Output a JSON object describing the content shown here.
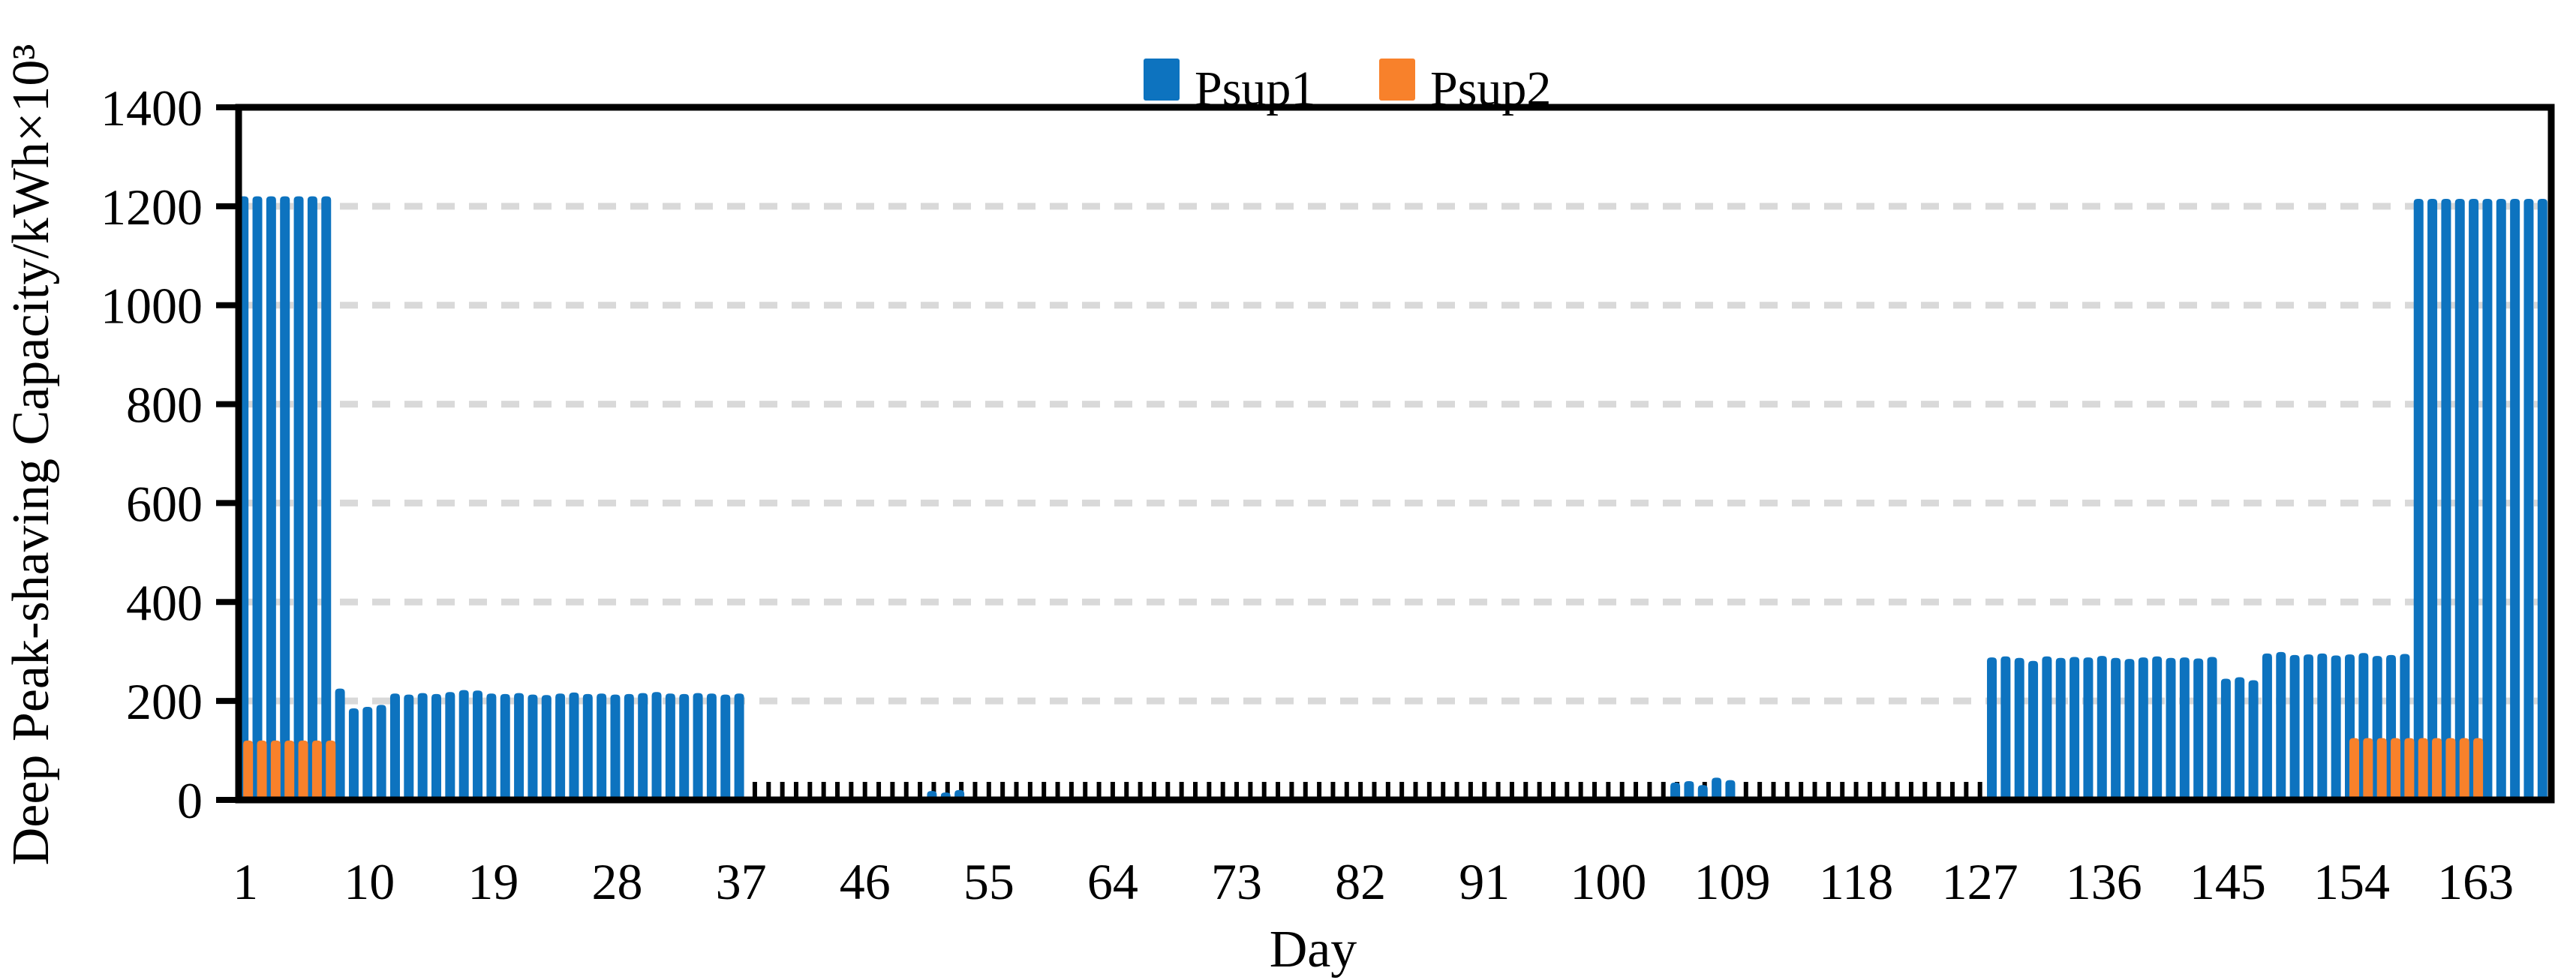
{
  "figure": {
    "background": "#ffffff",
    "frame_color": "#000000",
    "grid_color": "#d9d9d9"
  },
  "legend": {
    "items": [
      {
        "label": "Psup1",
        "color": "#0d73bf"
      },
      {
        "label": "Psup2",
        "color": "#f8812b"
      }
    ]
  },
  "chart_data": {
    "type": "bar",
    "title": "",
    "xlabel": "Day",
    "ylabel": "Deep Peak-shaving Capacity/kWh×10³",
    "x_range": [
      1,
      168
    ],
    "ylim": [
      0,
      1400
    ],
    "x_ticks": [
      1,
      10,
      19,
      28,
      37,
      46,
      55,
      64,
      73,
      82,
      91,
      100,
      109,
      118,
      127,
      136,
      145,
      154,
      163
    ],
    "y_ticks": [
      0,
      200,
      400,
      600,
      800,
      1000,
      1200,
      1400
    ],
    "grid": "horizontal dashed",
    "legend_position": "top center",
    "bar_style": "overlapped pair, Psup2 drawn in front offset right",
    "series": [
      {
        "name": "Psup1",
        "color": "#0d73bf",
        "values": [
          1220,
          1220,
          1220,
          1220,
          1220,
          1220,
          1220,
          225,
          185,
          188,
          192,
          215,
          213,
          216,
          214,
          218,
          222,
          221,
          215,
          214,
          216,
          213,
          212,
          215,
          217,
          214,
          215,
          213,
          214,
          216,
          218,
          215,
          214,
          216,
          215,
          213,
          215,
          0,
          0,
          0,
          0,
          0,
          0,
          0,
          0,
          0,
          0,
          0,
          0,
          0,
          18,
          15,
          20,
          0,
          0,
          0,
          0,
          0,
          0,
          0,
          0,
          0,
          0,
          0,
          0,
          0,
          0,
          0,
          0,
          0,
          0,
          0,
          0,
          0,
          0,
          0,
          0,
          0,
          0,
          0,
          0,
          0,
          0,
          0,
          0,
          0,
          0,
          0,
          0,
          0,
          0,
          0,
          0,
          0,
          0,
          0,
          0,
          0,
          0,
          0,
          0,
          0,
          0,
          0,
          35,
          38,
          30,
          45,
          40,
          0,
          0,
          0,
          0,
          0,
          0,
          0,
          0,
          0,
          0,
          0,
          0,
          0,
          0,
          0,
          0,
          0,
          0,
          288,
          290,
          287,
          281,
          290,
          287,
          289,
          288,
          291,
          287,
          285,
          288,
          290,
          287,
          288,
          286,
          289,
          245,
          248,
          242,
          296,
          299,
          293,
          294,
          296,
          292,
          294,
          297,
          291,
          293,
          295,
          1215,
          1215,
          1215,
          1215,
          1215,
          1215,
          1215,
          1215,
          1215,
          1215
        ]
      },
      {
        "name": "Psup2",
        "color": "#f8812b",
        "values": [
          120,
          120,
          120,
          120,
          120,
          120,
          120,
          0,
          0,
          0,
          0,
          0,
          0,
          0,
          0,
          0,
          0,
          0,
          0,
          0,
          0,
          0,
          0,
          0,
          0,
          0,
          0,
          0,
          0,
          0,
          0,
          0,
          0,
          0,
          0,
          0,
          0,
          0,
          0,
          0,
          0,
          0,
          0,
          0,
          0,
          0,
          0,
          0,
          0,
          0,
          0,
          0,
          0,
          0,
          0,
          0,
          0,
          0,
          0,
          0,
          0,
          0,
          0,
          0,
          0,
          0,
          0,
          0,
          0,
          0,
          0,
          0,
          0,
          0,
          0,
          0,
          0,
          0,
          0,
          0,
          0,
          0,
          0,
          0,
          0,
          0,
          0,
          0,
          0,
          0,
          0,
          0,
          0,
          0,
          0,
          0,
          0,
          0,
          0,
          0,
          0,
          0,
          0,
          0,
          0,
          0,
          0,
          0,
          0,
          0,
          0,
          0,
          0,
          0,
          0,
          0,
          0,
          0,
          0,
          0,
          0,
          0,
          0,
          0,
          0,
          0,
          0,
          0,
          0,
          0,
          0,
          0,
          0,
          0,
          0,
          0,
          0,
          0,
          0,
          0,
          0,
          0,
          0,
          0,
          0,
          0,
          0,
          0,
          0,
          0,
          0,
          0,
          0,
          125,
          125,
          125,
          125,
          125,
          125,
          125,
          125,
          125,
          125
        ]
      }
    ]
  }
}
